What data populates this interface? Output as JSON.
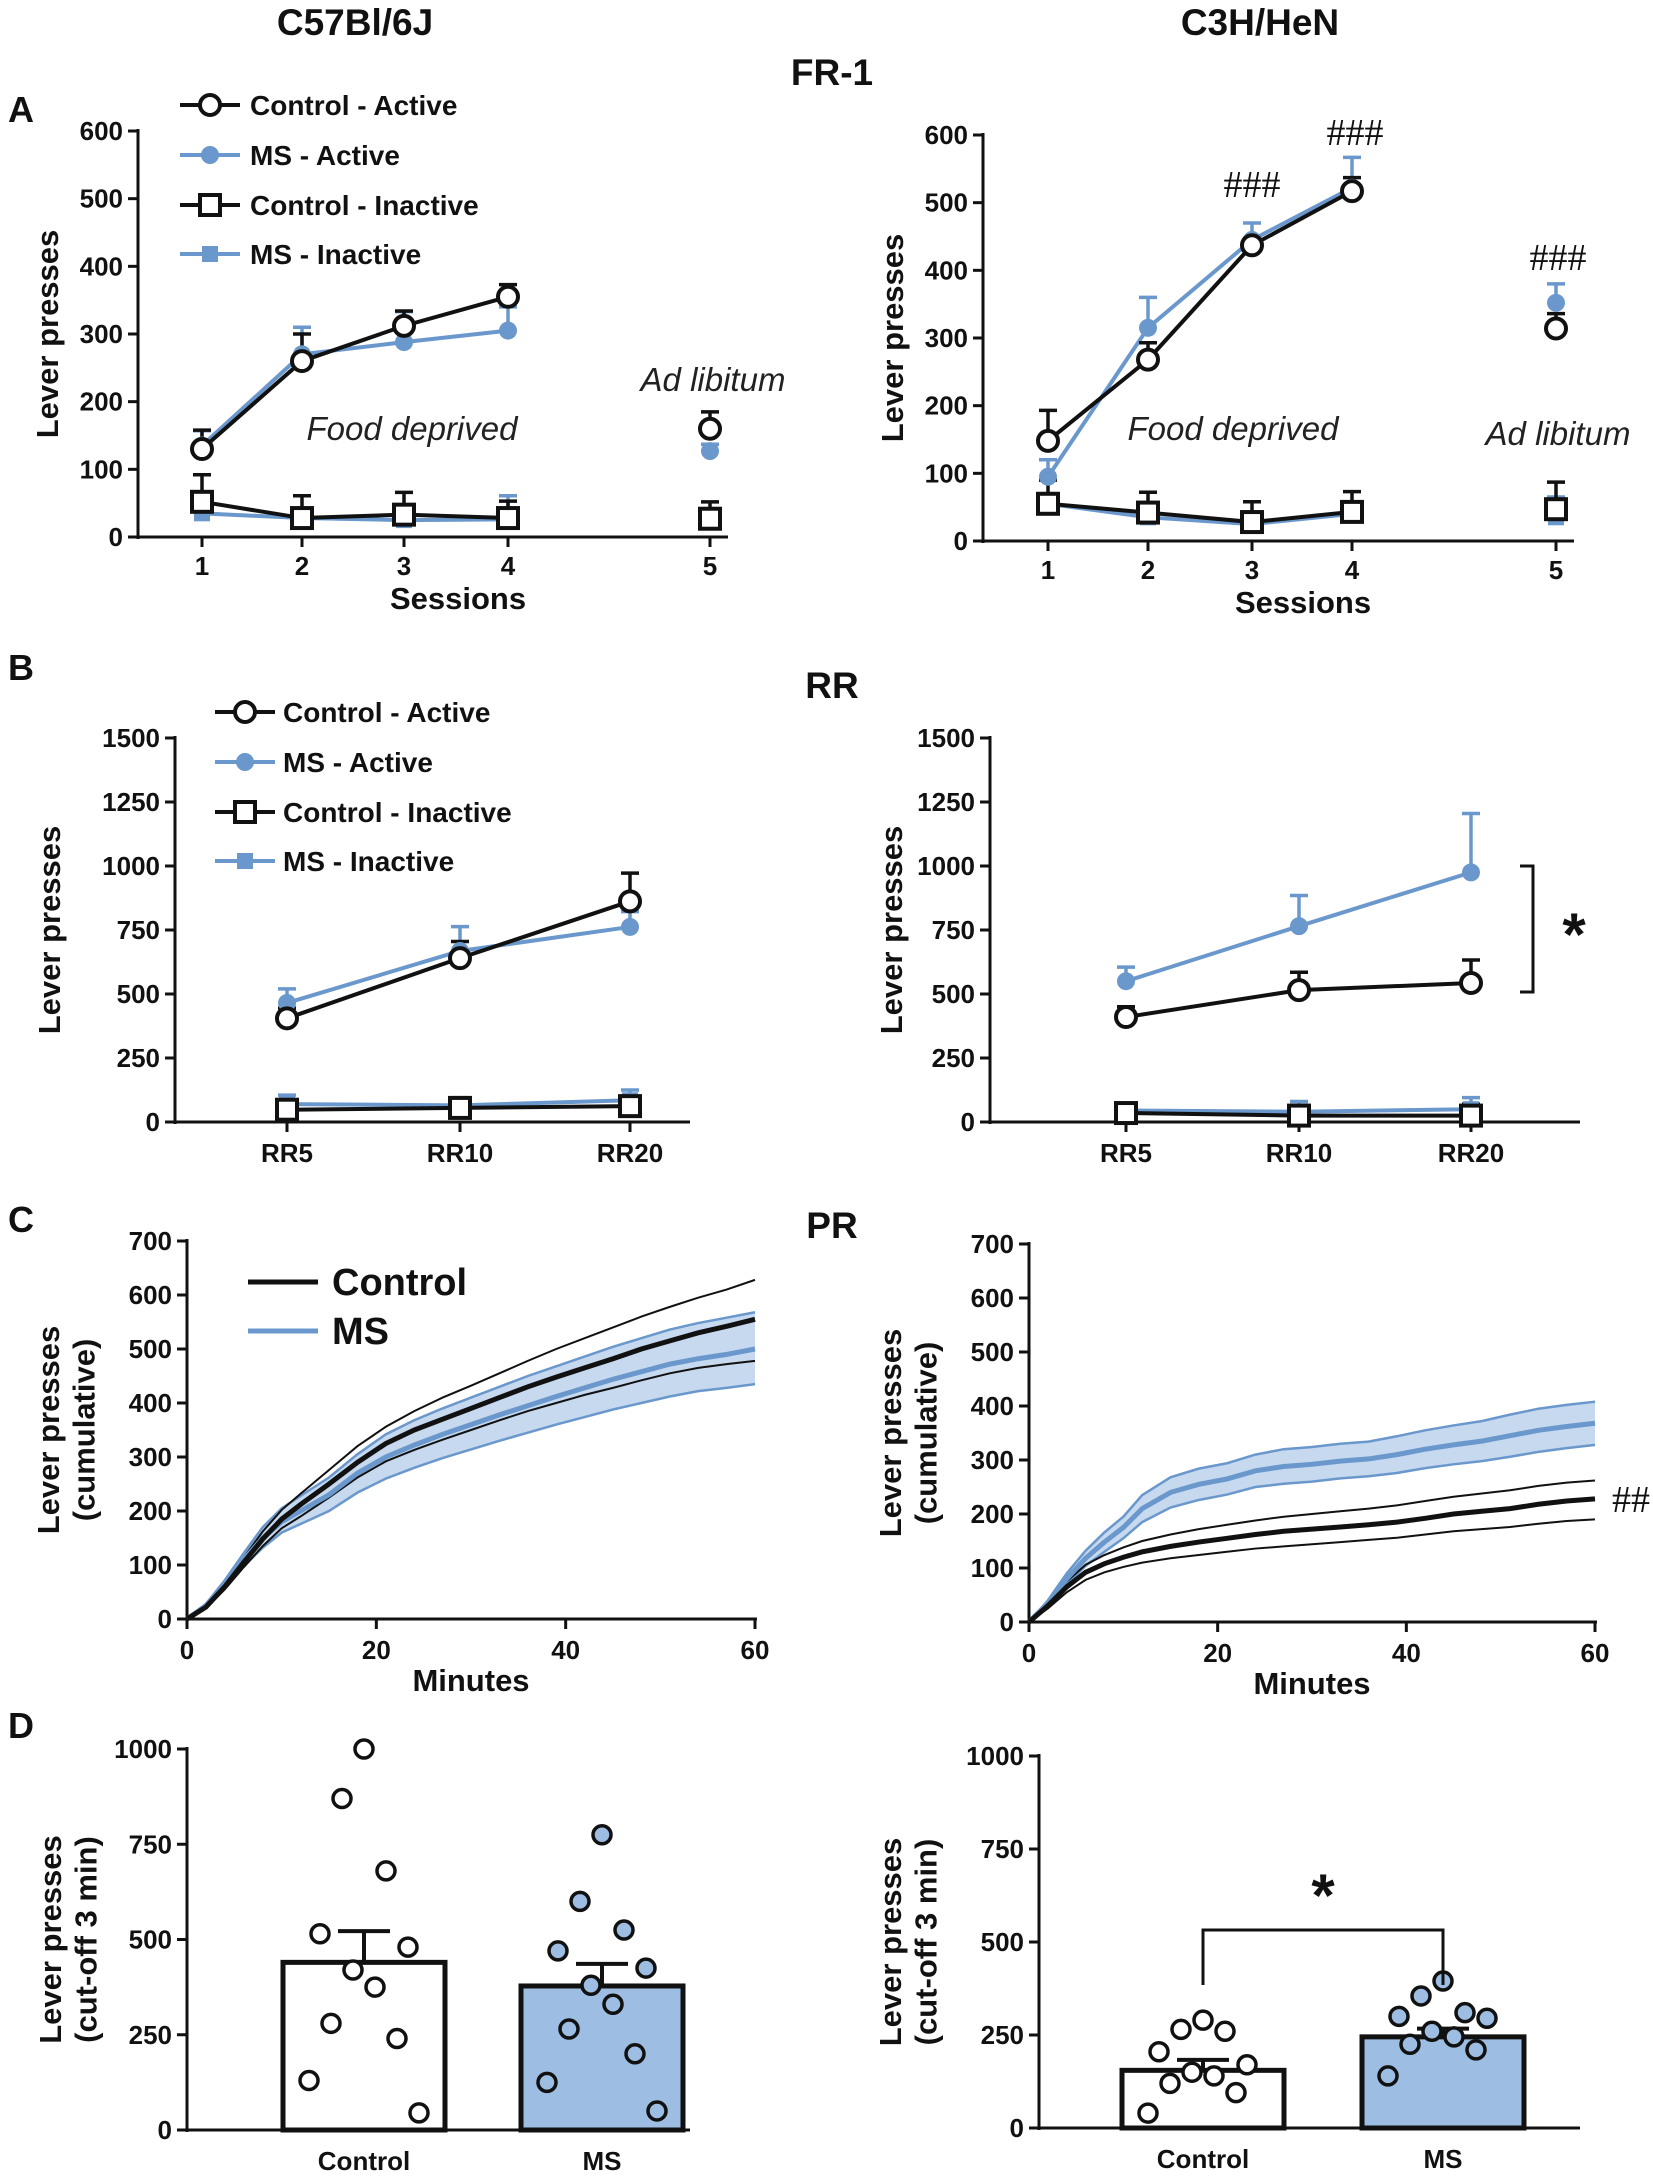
{
  "headers": {
    "left": "C57Bl/6J",
    "right": "C3H/HeN"
  },
  "panel_letters": {
    "a": "A",
    "b": "B",
    "c": "C",
    "d": "D"
  },
  "schedule_titles": {
    "fr1": "FR-1",
    "rr": "RR",
    "pr": "PR"
  },
  "colors": {
    "control": "#111111",
    "ms": "#6a98cc",
    "ms_fill": "#9dbde2",
    "ms_band": "#bcd2ec"
  },
  "legend_fr": [
    "Control - Active",
    "MS - Active",
    "Control - Inactive",
    "MS - Inactive"
  ],
  "legend_pr": [
    "Control",
    "MS"
  ],
  "chart_data": [
    {
      "id": "A-left",
      "type": "line",
      "title": "FR-1",
      "strain": "C57Bl/6J",
      "xlabel": "Sessions",
      "ylabel": "Lever presses",
      "ylim": [
        0,
        600
      ],
      "yticks": [
        0,
        100,
        200,
        300,
        400,
        500,
        600
      ],
      "xticks": [
        "1",
        "2",
        "3",
        "4",
        "5"
      ],
      "annotations": [
        "Food deprived",
        "Ad libitum"
      ],
      "series": [
        {
          "name": "Control - Active",
          "x": [
            1,
            2,
            3,
            4,
            5
          ],
          "values": [
            130,
            260,
            312,
            355,
            160
          ],
          "err": [
            28,
            40,
            22,
            18,
            25
          ]
        },
        {
          "name": "MS - Active",
          "x": [
            1,
            2,
            3,
            4,
            5
          ],
          "values": [
            135,
            270,
            288,
            305,
            127
          ],
          "err": [
            22,
            40,
            45,
            35,
            10
          ]
        },
        {
          "name": "Control - Inactive",
          "x": [
            1,
            2,
            3,
            4,
            5
          ],
          "values": [
            52,
            28,
            33,
            28,
            27
          ],
          "err": [
            40,
            33,
            33,
            25,
            25
          ]
        },
        {
          "name": "MS - Inactive",
          "x": [
            1,
            2,
            3,
            4,
            5
          ],
          "values": [
            35,
            28,
            25,
            26,
            30
          ],
          "err": [
            10,
            10,
            15,
            35,
            10
          ]
        }
      ]
    },
    {
      "id": "A-right",
      "type": "line",
      "title": "FR-1",
      "strain": "C3H/HeN",
      "xlabel": "Sessions",
      "ylabel": "Lever presses",
      "ylim": [
        0,
        600
      ],
      "yticks": [
        0,
        100,
        200,
        300,
        400,
        500,
        600
      ],
      "xticks": [
        "1",
        "2",
        "3",
        "4",
        "5"
      ],
      "annotations": [
        "Food deprived",
        "Ad libitum",
        "###",
        "###",
        "###"
      ],
      "series": [
        {
          "name": "Control - Active",
          "x": [
            1,
            2,
            3,
            4,
            5
          ],
          "values": [
            148,
            268,
            437,
            517,
            314
          ],
          "err": [
            45,
            25,
            10,
            20,
            22
          ]
        },
        {
          "name": "MS - Active",
          "x": [
            1,
            2,
            3,
            4,
            5
          ],
          "values": [
            95,
            315,
            445,
            522,
            352
          ],
          "err": [
            25,
            45,
            25,
            45,
            28
          ]
        },
        {
          "name": "Control - Inactive",
          "x": [
            1,
            2,
            3,
            4,
            5
          ],
          "values": [
            55,
            42,
            28,
            43,
            47
          ],
          "err": [
            35,
            30,
            30,
            30,
            40
          ]
        },
        {
          "name": "MS - Inactive",
          "x": [
            1,
            2,
            3,
            4,
            5
          ],
          "values": [
            55,
            35,
            25,
            40,
            35
          ],
          "err": [
            15,
            15,
            15,
            15,
            30
          ]
        }
      ]
    },
    {
      "id": "B-left",
      "type": "line",
      "title": "RR",
      "strain": "C57Bl/6J",
      "xlabel": "",
      "ylabel": "Lever presses",
      "ylim": [
        0,
        1500
      ],
      "yticks": [
        0,
        250,
        500,
        750,
        1000,
        1250,
        1500
      ],
      "categories": [
        "RR5",
        "RR10",
        "RR20"
      ],
      "series": [
        {
          "name": "Control - Active",
          "values": [
            405,
            640,
            862
          ],
          "err": [
            40,
            65,
            110
          ]
        },
        {
          "name": "MS - Active",
          "values": [
            465,
            668,
            762
          ],
          "err": [
            55,
            95,
            60
          ]
        },
        {
          "name": "Control - Inactive",
          "values": [
            48,
            55,
            62
          ],
          "err": [
            25,
            25,
            25
          ]
        },
        {
          "name": "MS - Inactive",
          "values": [
            70,
            65,
            85
          ],
          "err": [
            35,
            30,
            40
          ]
        }
      ]
    },
    {
      "id": "B-right",
      "type": "line",
      "title": "RR",
      "strain": "C3H/HeN",
      "xlabel": "",
      "ylabel": "Lever presses",
      "ylim": [
        0,
        1500
      ],
      "yticks": [
        0,
        250,
        500,
        750,
        1000,
        1250,
        1500
      ],
      "categories": [
        "RR5",
        "RR10",
        "RR20"
      ],
      "significance": "*",
      "series": [
        {
          "name": "Control - Active",
          "values": [
            410,
            515,
            543
          ],
          "err": [
            40,
            70,
            90
          ]
        },
        {
          "name": "MS - Active",
          "values": [
            550,
            765,
            975
          ],
          "err": [
            55,
            120,
            230
          ]
        },
        {
          "name": "Control - Inactive",
          "values": [
            35,
            25,
            25
          ],
          "err": [
            20,
            40,
            45
          ]
        },
        {
          "name": "MS - Inactive",
          "values": [
            45,
            40,
            50
          ],
          "err": [
            25,
            40,
            45
          ]
        }
      ]
    },
    {
      "id": "C-left",
      "type": "area",
      "title": "PR",
      "strain": "C57Bl/6J",
      "xlabel": "Minutes",
      "ylabel": "Lever presses (cumulative)",
      "xlim": [
        0,
        60
      ],
      "xticks": [
        0,
        20,
        40,
        60
      ],
      "ylim": [
        0,
        700
      ],
      "yticks": [
        0,
        100,
        200,
        300,
        400,
        500,
        600,
        700
      ],
      "x": [
        0,
        2,
        4,
        6,
        8,
        10,
        12,
        15,
        18,
        21,
        24,
        27,
        30,
        33,
        36,
        39,
        42,
        45,
        48,
        51,
        54,
        57,
        60
      ],
      "series": [
        {
          "name": "Control",
          "values": [
            0,
            22,
            60,
            105,
            148,
            185,
            212,
            250,
            290,
            325,
            350,
            370,
            390,
            410,
            430,
            448,
            465,
            482,
            500,
            515,
            530,
            542,
            555
          ],
          "lower": [
            0,
            20,
            55,
            96,
            135,
            168,
            190,
            225,
            262,
            292,
            313,
            332,
            350,
            368,
            385,
            400,
            415,
            428,
            442,
            455,
            465,
            472,
            478
          ],
          "upper": [
            0,
            25,
            66,
            114,
            162,
            202,
            232,
            276,
            320,
            356,
            385,
            410,
            432,
            455,
            478,
            500,
            520,
            540,
            560,
            578,
            595,
            610,
            628
          ]
        },
        {
          "name": "MS",
          "values": [
            0,
            25,
            65,
            110,
            150,
            180,
            200,
            230,
            270,
            300,
            322,
            342,
            360,
            378,
            395,
            412,
            428,
            444,
            458,
            472,
            482,
            490,
            500
          ],
          "lower": [
            0,
            22,
            58,
            98,
            132,
            160,
            176,
            200,
            234,
            260,
            280,
            298,
            314,
            330,
            345,
            360,
            374,
            388,
            400,
            412,
            422,
            428,
            435
          ],
          "upper": [
            0,
            28,
            72,
            122,
            170,
            205,
            228,
            262,
            305,
            342,
            368,
            390,
            410,
            430,
            450,
            468,
            486,
            504,
            520,
            536,
            548,
            558,
            568
          ]
        }
      ]
    },
    {
      "id": "C-right",
      "type": "area",
      "title": "PR",
      "strain": "C3H/HeN",
      "xlabel": "Minutes",
      "ylabel": "Lever presses (cumulative)",
      "xlim": [
        0,
        60
      ],
      "xticks": [
        0,
        20,
        40,
        60
      ],
      "ylim": [
        0,
        700
      ],
      "yticks": [
        0,
        100,
        200,
        300,
        400,
        500,
        600,
        700
      ],
      "significance": "##",
      "x": [
        0,
        2,
        4,
        6,
        8,
        10,
        12,
        15,
        18,
        21,
        24,
        27,
        30,
        33,
        36,
        39,
        42,
        45,
        48,
        51,
        54,
        57,
        60
      ],
      "series": [
        {
          "name": "Control",
          "values": [
            0,
            30,
            65,
            92,
            108,
            120,
            130,
            140,
            148,
            155,
            162,
            168,
            172,
            176,
            180,
            185,
            192,
            200,
            205,
            210,
            218,
            224,
            228
          ],
          "lower": [
            0,
            25,
            55,
            78,
            92,
            102,
            110,
            118,
            124,
            130,
            136,
            140,
            144,
            148,
            152,
            156,
            162,
            168,
            172,
            176,
            182,
            187,
            190
          ],
          "upper": [
            0,
            35,
            75,
            106,
            124,
            138,
            150,
            162,
            172,
            180,
            188,
            195,
            200,
            205,
            210,
            216,
            224,
            232,
            238,
            244,
            252,
            258,
            262
          ]
        },
        {
          "name": "MS",
          "values": [
            0,
            35,
            80,
            118,
            148,
            175,
            210,
            240,
            255,
            265,
            280,
            288,
            292,
            298,
            302,
            310,
            320,
            328,
            335,
            345,
            355,
            362,
            368
          ],
          "lower": [
            0,
            30,
            70,
            104,
            130,
            155,
            185,
            212,
            226,
            236,
            250,
            256,
            260,
            266,
            270,
            276,
            285,
            292,
            298,
            306,
            315,
            322,
            328
          ],
          "upper": [
            0,
            40,
            90,
            132,
            166,
            195,
            235,
            268,
            284,
            294,
            310,
            320,
            324,
            330,
            334,
            344,
            355,
            364,
            372,
            384,
            395,
            402,
            408
          ]
        }
      ]
    },
    {
      "id": "D-left",
      "type": "bar",
      "strain": "C57Bl/6J",
      "xlabel": "",
      "ylabel": "Lever presses (cut-off 3 min)",
      "ylim": [
        0,
        1000
      ],
      "yticks": [
        0,
        250,
        500,
        750,
        1000
      ],
      "categories": [
        "Control",
        "MS"
      ],
      "values": [
        440,
        378
      ],
      "err": [
        82,
        58
      ],
      "points": [
        [
          1000,
          870,
          680,
          515,
          480,
          420,
          375,
          280,
          240,
          130,
          45
        ],
        [
          775,
          600,
          525,
          470,
          425,
          380,
          330,
          265,
          200,
          125,
          50
        ]
      ]
    },
    {
      "id": "D-right",
      "type": "bar",
      "strain": "C3H/HeN",
      "xlabel": "",
      "ylabel": "Lever presses (cut-off 3 min)",
      "ylim": [
        0,
        1000
      ],
      "yticks": [
        0,
        250,
        500,
        750,
        1000
      ],
      "categories": [
        "Control",
        "MS"
      ],
      "values": [
        155,
        245
      ],
      "err": [
        28,
        22
      ],
      "significance": "*",
      "points": [
        [
          290,
          265,
          260,
          205,
          170,
          150,
          140,
          120,
          95,
          40
        ],
        [
          395,
          355,
          310,
          300,
          295,
          260,
          245,
          225,
          210,
          140
        ]
      ]
    }
  ]
}
